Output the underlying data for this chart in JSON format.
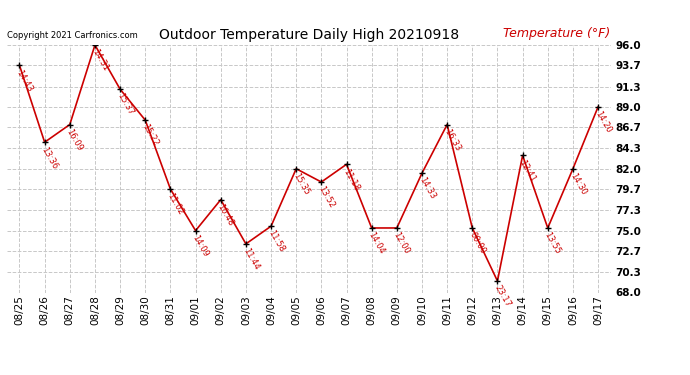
{
  "title": "Outdoor Temperature Daily High 20210918",
  "ylabel": "Temperature (°F)",
  "copyright": "Copyright 2021 Carfronics.com",
  "bg_color": "#ffffff",
  "line_color": "#cc0000",
  "marker_color": "#000000",
  "grid_color": "#c8c8c8",
  "dates": [
    "08/25",
    "08/26",
    "08/27",
    "08/28",
    "08/29",
    "08/30",
    "08/31",
    "09/01",
    "09/02",
    "09/03",
    "09/04",
    "09/05",
    "09/06",
    "09/07",
    "09/08",
    "09/09",
    "09/10",
    "09/11",
    "09/12",
    "09/13",
    "09/14",
    "09/15",
    "09/16",
    "09/17"
  ],
  "temps": [
    93.7,
    85.0,
    87.0,
    96.0,
    91.0,
    87.5,
    79.7,
    75.0,
    78.5,
    73.5,
    75.5,
    82.0,
    80.5,
    82.5,
    75.3,
    75.3,
    81.5,
    87.0,
    75.3,
    69.3,
    83.5,
    75.3,
    82.0,
    89.0
  ],
  "labels": [
    "14:43",
    "13:36",
    "16:09",
    "14:31",
    "15:37",
    "15:22",
    "11:02",
    "14:09",
    "10:48",
    "11:44",
    "11:58",
    "15:35",
    "13:52",
    "11:18",
    "14:04",
    "12:00",
    "14:33",
    "16:33",
    "00:00",
    "23:17",
    "12:41",
    "13:55",
    "14:30",
    "14:20"
  ],
  "ylim": [
    68.0,
    96.0
  ],
  "yticks": [
    68.0,
    70.3,
    72.7,
    75.0,
    77.3,
    79.7,
    82.0,
    84.3,
    86.7,
    89.0,
    91.3,
    93.7,
    96.0
  ]
}
